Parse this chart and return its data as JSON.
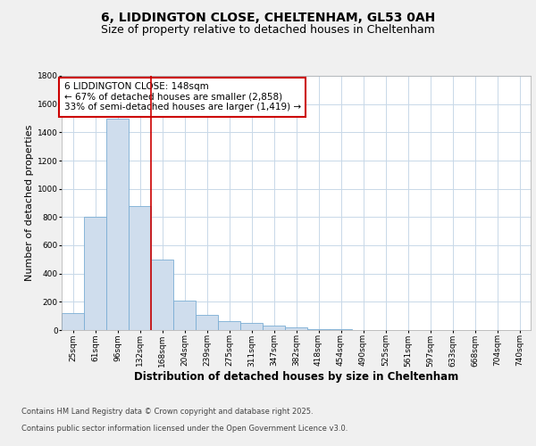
{
  "title": "6, LIDDINGTON CLOSE, CHELTENHAM, GL53 0AH",
  "subtitle": "Size of property relative to detached houses in Cheltenham",
  "xlabel": "Distribution of detached houses by size in Cheltenham",
  "ylabel": "Number of detached properties",
  "categories": [
    "25sqm",
    "61sqm",
    "96sqm",
    "132sqm",
    "168sqm",
    "204sqm",
    "239sqm",
    "275sqm",
    "311sqm",
    "347sqm",
    "382sqm",
    "418sqm",
    "454sqm",
    "490sqm",
    "525sqm",
    "561sqm",
    "597sqm",
    "633sqm",
    "668sqm",
    "704sqm",
    "740sqm"
  ],
  "values": [
    120,
    800,
    1500,
    880,
    500,
    210,
    110,
    65,
    50,
    30,
    20,
    5,
    5,
    3,
    2,
    1,
    1,
    0,
    0,
    0,
    0
  ],
  "bar_color": "#cfdded",
  "bar_edge_color": "#7aadd4",
  "bar_edge_width": 0.6,
  "vline_x_index": 3,
  "vline_color": "#cc0000",
  "annotation_text": "6 LIDDINGTON CLOSE: 148sqm\n← 67% of detached houses are smaller (2,858)\n33% of semi-detached houses are larger (1,419) →",
  "annotation_box_color": "#cc0000",
  "ylim": [
    0,
    1800
  ],
  "yticks": [
    0,
    200,
    400,
    600,
    800,
    1000,
    1200,
    1400,
    1600,
    1800
  ],
  "bg_color": "#f0f0f0",
  "plot_bg_color": "#ffffff",
  "grid_color": "#c8d8e8",
  "footer_line1": "Contains HM Land Registry data © Crown copyright and database right 2025.",
  "footer_line2": "Contains public sector information licensed under the Open Government Licence v3.0.",
  "title_fontsize": 10,
  "subtitle_fontsize": 9,
  "xlabel_fontsize": 8.5,
  "ylabel_fontsize": 8,
  "tick_fontsize": 6.5,
  "annotation_fontsize": 7.5,
  "footer_fontsize": 6
}
